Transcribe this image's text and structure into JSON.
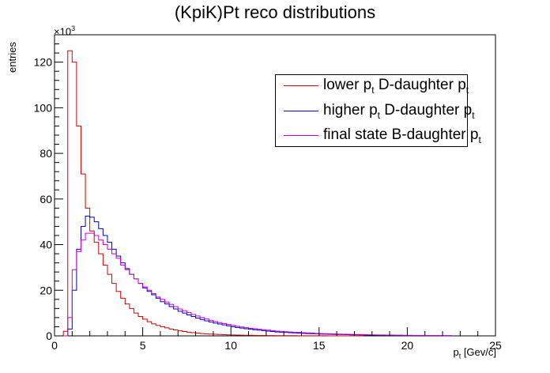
{
  "chart_data": {
    "type": "histogram",
    "title": "(KpiK)Pt reco distributions",
    "xlabel_main": "p",
    "xlabel_sub": "t",
    "xlabel_units": " [Gev/c]",
    "ylabel": "entries",
    "y_multiplier_base": "×10",
    "y_multiplier_exp": "3",
    "xlim": [
      0,
      25
    ],
    "ylim": [
      0,
      132
    ],
    "x_ticks": [
      0,
      5,
      10,
      15,
      20,
      25
    ],
    "y_ticks": [
      0,
      20,
      40,
      60,
      80,
      100,
      120
    ],
    "bin_width": 0.25,
    "series": [
      {
        "name": "lower p_t D-daughter p_t",
        "color": "#d40000",
        "values": [
          0,
          0,
          2,
          125,
          120,
          92,
          71,
          56,
          46,
          41,
          36,
          31,
          27,
          23,
          19.5,
          16.5,
          14,
          12,
          10,
          8.5,
          7.3,
          6.2,
          5.3,
          4.6,
          4.0,
          3.5,
          3.0,
          2.6,
          2.2,
          1.9,
          1.6,
          1.4,
          1.2,
          1.0,
          0.9,
          0.8,
          0.7,
          0.6,
          0.5,
          0.45,
          0.4,
          0.35,
          0.3,
          0.27,
          0.24,
          0.2,
          0.18,
          0.16,
          0.14,
          0.12,
          0.1,
          0.1,
          0.09,
          0.08,
          0.07,
          0.06,
          0.05,
          0.05,
          0.04,
          0.04,
          0.03,
          0.03,
          0.02,
          0.02,
          0.02,
          0.02,
          0.01,
          0.01,
          0.01,
          0.01
        ]
      },
      {
        "name": "higher p_t D-daughter p_t",
        "color": "#0000cc",
        "values": [
          0,
          0,
          0,
          3,
          20,
          38,
          48,
          52.5,
          52,
          50,
          47,
          44,
          41,
          38,
          35,
          32,
          29.5,
          27,
          25,
          23,
          21,
          19.5,
          18,
          16.5,
          15,
          14,
          12.8,
          11.8,
          10.8,
          10,
          9.2,
          8.5,
          7.8,
          7.2,
          6.6,
          6.1,
          5.6,
          5.2,
          4.8,
          4.4,
          4.0,
          3.7,
          3.4,
          3.1,
          2.9,
          2.7,
          2.5,
          2.3,
          2.1,
          1.9,
          1.7,
          1.6,
          1.5,
          1.4,
          1.3,
          1.2,
          1.1,
          1.0,
          0.95,
          0.9,
          0.8,
          0.75,
          0.7,
          0.65,
          0.6,
          0.55,
          0.5,
          0.45,
          0.42,
          0.4,
          0.37,
          0.35,
          0.33,
          0.3,
          0.28,
          0.26,
          0.24,
          0.22,
          0.2,
          0.19,
          0.18,
          0.17,
          0.16,
          0.15,
          0.14,
          0.13,
          0.12,
          0.11,
          0.1,
          0.1
        ]
      },
      {
        "name": "final state B-daughter p_t",
        "color": "#cc00cc",
        "values": [
          0,
          0,
          0,
          8,
          29,
          37,
          42,
          45,
          45,
          44,
          42,
          40,
          38,
          36,
          34,
          31,
          29,
          27,
          25,
          23,
          21.5,
          20,
          18.5,
          17,
          16,
          14.8,
          13.8,
          12.8,
          11.8,
          11,
          10.2,
          9.4,
          8.7,
          8,
          7.4,
          6.8,
          6.3,
          5.8,
          5.4,
          5.0,
          4.6,
          4.2,
          3.9,
          3.6,
          3.3,
          3.1,
          2.9,
          2.7,
          2.5,
          2.3,
          2.1,
          2.0,
          1.8,
          1.7,
          1.6,
          1.5,
          1.4,
          1.3,
          1.2,
          1.1,
          1.0,
          0.95,
          0.9,
          0.85,
          0.8,
          0.75,
          0.7,
          0.65,
          0.6,
          0.55,
          0.5,
          0.47,
          0.44,
          0.41,
          0.38,
          0.35,
          0.33,
          0.31,
          0.29,
          0.27,
          0.25,
          0.23,
          0.21,
          0.2,
          0.19,
          0.18,
          0.17,
          0.16,
          0.15,
          0.14
        ]
      }
    ],
    "legend": [
      {
        "pre": "lower p",
        "sub1": "t",
        "mid": " D-daughter p",
        "sub2": "t",
        "color": "#d40000"
      },
      {
        "pre": "higher p",
        "sub1": "t",
        "mid": " D-daughter p",
        "sub2": "t",
        "color": "#0000cc"
      },
      {
        "pre": "final state B-daughter p",
        "sub1": "t",
        "mid": "",
        "sub2": "",
        "color": "#cc00cc"
      }
    ]
  }
}
